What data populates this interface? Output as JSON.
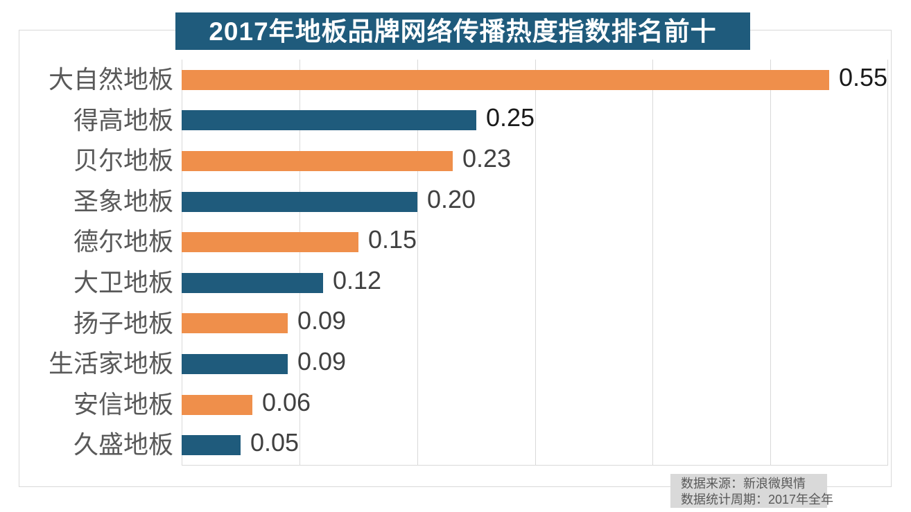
{
  "title": "2017年地板品牌网络传播热度指数排名前十",
  "footer": {
    "line1": "数据来源：新浪微舆情",
    "line2": "数据统计周期：2017年全年"
  },
  "colors": {
    "banner_bg": "#1F5B7C",
    "bar_blue": "#1F5B7C",
    "bar_orange": "#EF8F4B",
    "gridline": "#D9D9D9",
    "frame_border": "#D9D9D9",
    "category_label": "#595959",
    "value_label_black": "#1A1A1A",
    "value_label_gray": "#404040",
    "footer_bg": "#D9D9D9",
    "footer_text": "#595959"
  },
  "chart_data": {
    "type": "bar",
    "orientation": "horizontal",
    "title": "2017年地板品牌网络传播热度指数排名前十",
    "categories": [
      "大自然地板",
      "得高地板",
      "贝尔地板",
      "圣象地板",
      "德尔地板",
      "大卫地板",
      "扬子地板",
      "生活家地板",
      "安信地板",
      "久盛地板"
    ],
    "values": [
      0.55,
      0.25,
      0.23,
      0.2,
      0.15,
      0.12,
      0.09,
      0.09,
      0.06,
      0.05
    ],
    "value_labels": [
      "0.55",
      "0.25",
      "0.23",
      "0.20",
      "0.15",
      "0.12",
      "0.09",
      "0.09",
      "0.06",
      "0.05"
    ],
    "bar_colors": [
      "#EF8F4B",
      "#1F5B7C",
      "#EF8F4B",
      "#1F5B7C",
      "#EF8F4B",
      "#1F5B7C",
      "#EF8F4B",
      "#1F5B7C",
      "#EF8F4B",
      "#1F5B7C"
    ],
    "value_label_colors": [
      "#1A1A1A",
      "#1A1A1A",
      "#404040",
      "#404040",
      "#404040",
      "#404040",
      "#404040",
      "#404040",
      "#404040",
      "#404040"
    ],
    "xlabel": "",
    "ylabel": "",
    "xlim": [
      0,
      0.6
    ],
    "gridline_interval": 0.1,
    "grid": true,
    "legend": false,
    "data_source_note": "数据来源：新浪微舆情",
    "period_note": "数据统计周期：2017年全年"
  }
}
